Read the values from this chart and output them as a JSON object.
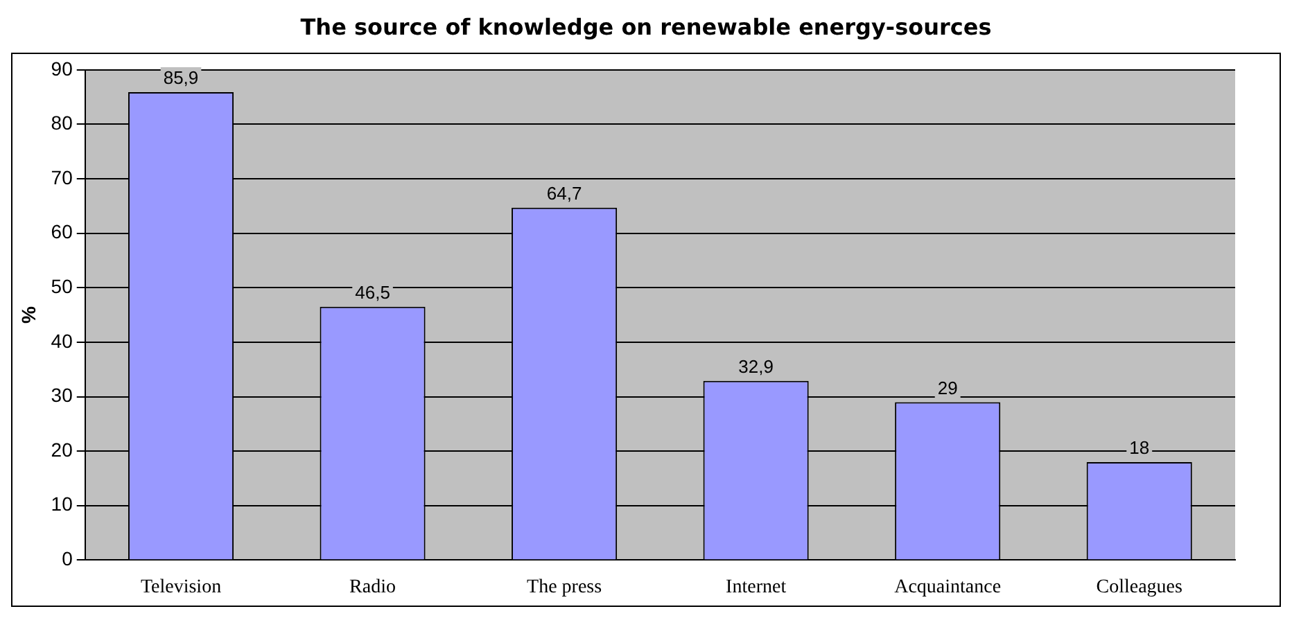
{
  "chart_data": {
    "type": "bar",
    "title": "The source of knowledge on renewable energy-sources",
    "ylabel": "%",
    "categories": [
      "Television",
      "Radio",
      "The press",
      "Internet",
      "Acquaintance",
      "Colleagues"
    ],
    "values": [
      85.9,
      46.5,
      64.7,
      32.9,
      29,
      18
    ],
    "value_labels": [
      "85,9",
      "46,5",
      "64,7",
      "32,9",
      "29",
      "18"
    ],
    "color": "#9999ff",
    "ylim": [
      0,
      90
    ],
    "yticks": [
      0,
      10,
      20,
      30,
      40,
      50,
      60,
      70,
      80,
      90
    ],
    "grid": "y",
    "legend": false
  }
}
